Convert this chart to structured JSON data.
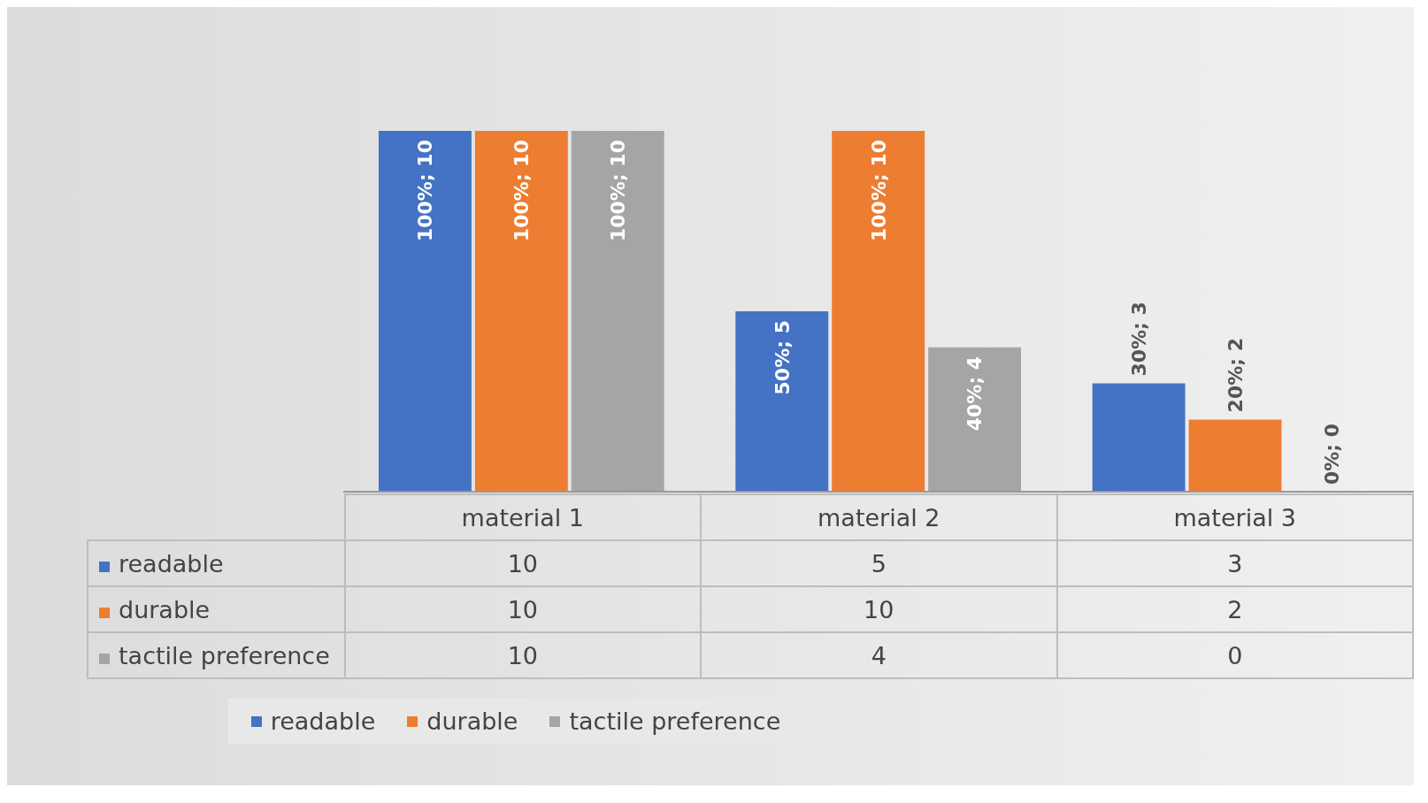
{
  "chart_data": {
    "type": "bar",
    "categories": [
      "material 1",
      "material 2",
      "material 3"
    ],
    "series": [
      {
        "name": "readable",
        "color": "#4472c4",
        "values": [
          10,
          5,
          3
        ]
      },
      {
        "name": "durable",
        "color": "#ed7d31",
        "values": [
          10,
          10,
          2
        ]
      },
      {
        "name": "tactile preference",
        "color": "#a5a5a5",
        "values": [
          10,
          4,
          0
        ]
      }
    ],
    "annotations": [
      "100%; 10",
      "100%; 10",
      "100%; 10",
      "50%; 5",
      "100%; 10",
      "40%; 4",
      "30%; 3",
      "20%; 2",
      "0%; 0"
    ],
    "data_labels": true,
    "legend": "bottom"
  }
}
